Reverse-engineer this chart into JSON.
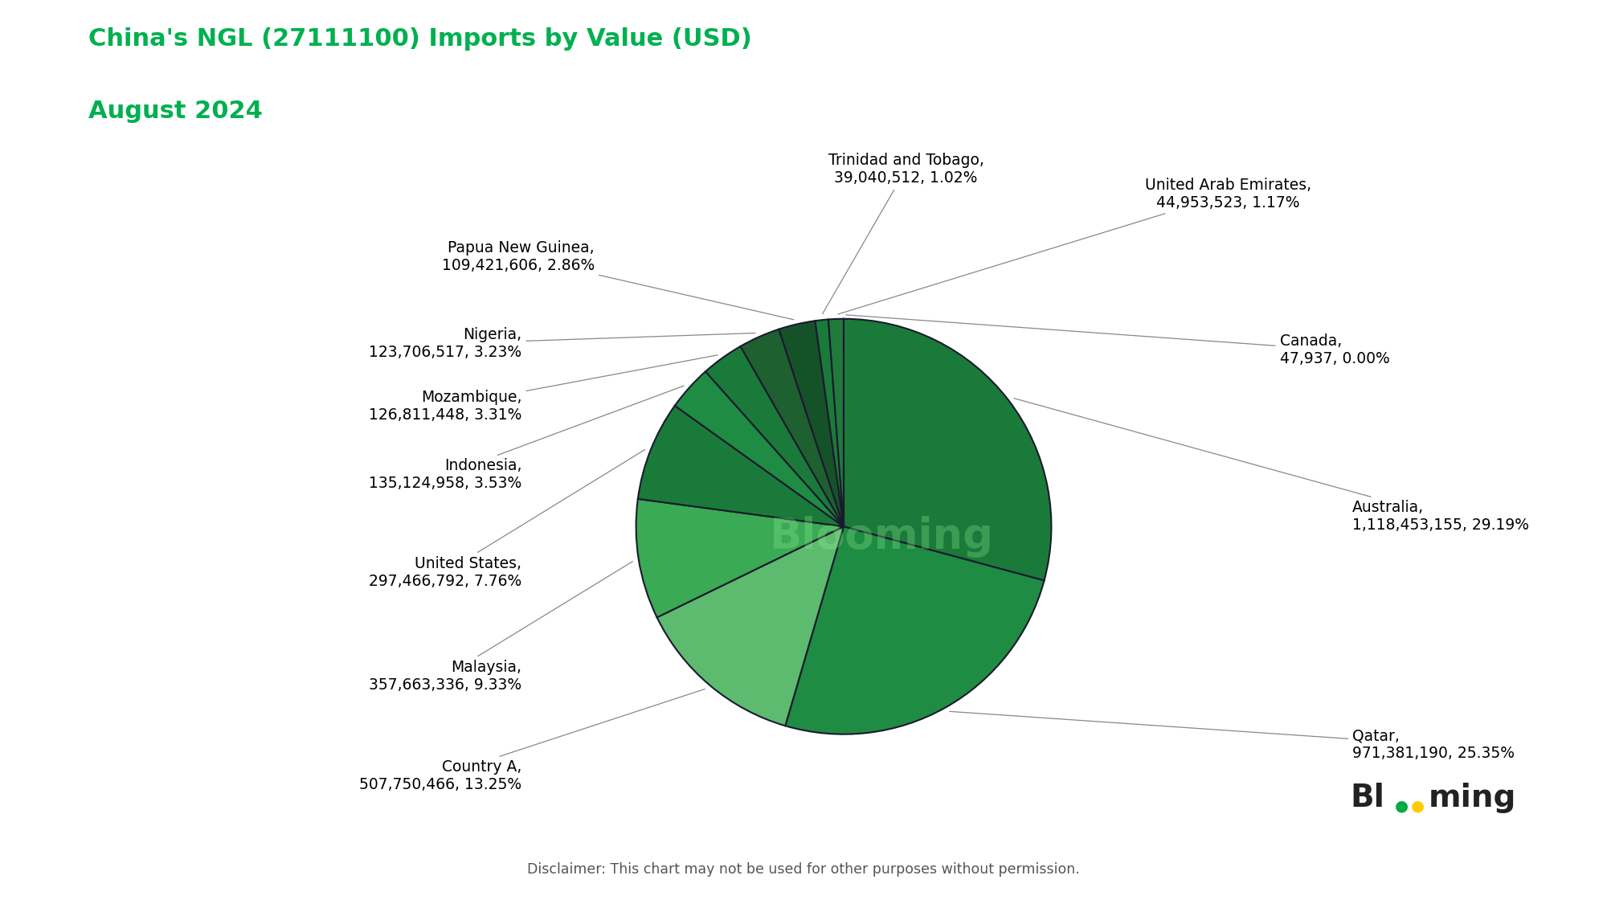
{
  "title_line1": "China's NGL (27111100) Imports by Value (USD)",
  "title_line2": "August 2024",
  "title_color": "#00b050",
  "disclaimer": "Disclaimer: This chart may not be used for other purposes without permission.",
  "watermark": "Blooming",
  "slices": [
    {
      "label": "Australia",
      "value": 1118453155,
      "pct": 29.19,
      "color": "#1a7a3a"
    },
    {
      "label": "Qatar",
      "value": 971381190,
      "pct": 25.35,
      "color": "#1e8c42"
    },
    {
      "label": "Country A",
      "value": 507750466,
      "pct": 13.25,
      "color": "#5cbb6e"
    },
    {
      "label": "Malaysia",
      "value": 357663336,
      "pct": 9.33,
      "color": "#3aaa55"
    },
    {
      "label": "United States",
      "value": 297466792,
      "pct": 7.76,
      "color": "#1a7a3a"
    },
    {
      "label": "Indonesia",
      "value": 135124958,
      "pct": 3.53,
      "color": "#1e8c42"
    },
    {
      "label": "Mozambique",
      "value": 126811448,
      "pct": 3.31,
      "color": "#1a7a3a"
    },
    {
      "label": "Nigeria",
      "value": 123706517,
      "pct": 3.23,
      "color": "#1e6030"
    },
    {
      "label": "Papua New Guinea",
      "value": 109421606,
      "pct": 2.86,
      "color": "#155228"
    },
    {
      "label": "Trinidad and Tobago",
      "value": 39040512,
      "pct": 1.02,
      "color": "#1a7a3a"
    },
    {
      "label": "United Arab Emirates",
      "value": 44953523,
      "pct": 1.17,
      "color": "#217a3c"
    },
    {
      "label": "Canada",
      "value": 47937,
      "pct": 0.0,
      "color": "#1e3a28"
    }
  ],
  "background_color": "#ffffff",
  "label_fontsize": 13.5,
  "title_fontsize": 22,
  "disclaimer_fontsize": 12.5,
  "edge_color": "#1a1a2e",
  "edge_linewidth": 1.5,
  "watermark_fontsize": 38,
  "watermark_color": "#90ee90",
  "watermark_alpha": 0.3
}
